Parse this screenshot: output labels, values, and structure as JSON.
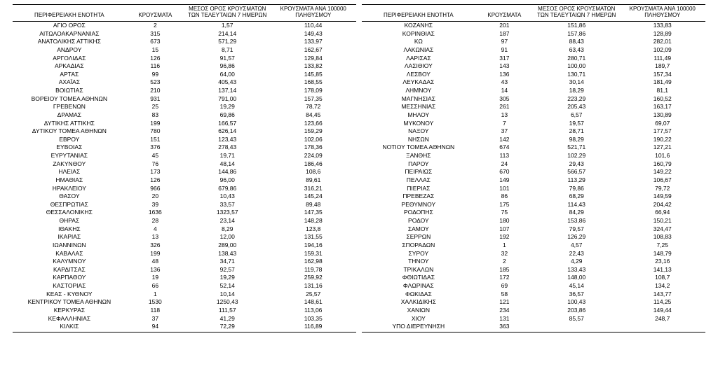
{
  "columns": [
    "ΠΕΡΙΦΕΡΕΙΑΚΗ ΕΝΟΤΗΤΑ",
    "ΚΡΟΥΣΜΑΤΑ",
    "ΜΕΣΟΣ ΟΡΟΣ ΚΡΟΥΣΜΑΤΩΝ\nΤΩΝ ΤΕΛΕΥΤΑΙΩΝ 7 ΗΜΕΡΩΝ",
    "ΚΡΟΥΣΜΑΤΑ ΑΝΑ 100000\nΠΛΗΘΥΣΜΟΥ"
  ],
  "style": {
    "background_color": "#ffffff",
    "text_color": "#000000",
    "rule_color": "#000000",
    "header_fontsize_pt": 8,
    "body_fontsize_pt": 8.5,
    "font_family": "Arial",
    "column_widths_pct": [
      33,
      17,
      25,
      25
    ],
    "type": "table"
  },
  "left": [
    [
      "ΑΓΙΟ ΟΡΟΣ",
      "2",
      "1,57",
      "110,44"
    ],
    [
      "ΑΙΤΩΛΟΑΚΑΡΝΑΝΙΑΣ",
      "315",
      "214,14",
      "149,43"
    ],
    [
      "ΑΝΑΤΟΛΙΚΗΣ ΑΤΤΙΚΗΣ",
      "673",
      "571,29",
      "133,97"
    ],
    [
      "ΑΝΔΡΟΥ",
      "15",
      "8,71",
      "162,67"
    ],
    [
      "ΑΡΓΟΛΙΔΑΣ",
      "126",
      "91,57",
      "129,84"
    ],
    [
      "ΑΡΚΑΔΙΑΣ",
      "116",
      "96,86",
      "133,82"
    ],
    [
      "ΑΡΤΑΣ",
      "99",
      "64,00",
      "145,85"
    ],
    [
      "ΑΧΑΪΑΣ",
      "523",
      "405,43",
      "168,55"
    ],
    [
      "ΒΟΙΩΤΙΑΣ",
      "210",
      "137,14",
      "178,09"
    ],
    [
      "ΒΟΡΕΙΟΥ ΤΟΜΕΑ ΑΘΗΝΩΝ",
      "931",
      "791,00",
      "157,35"
    ],
    [
      "ΓΡΕΒΕΝΩΝ",
      "25",
      "19,29",
      "78,72"
    ],
    [
      "ΔΡΑΜΑΣ",
      "83",
      "69,86",
      "84,45"
    ],
    [
      "ΔΥΤΙΚΗΣ ΑΤΤΙΚΗΣ",
      "199",
      "166,57",
      "123,66"
    ],
    [
      "ΔΥΤΙΚΟΥ ΤΟΜΕΑ ΑΘΗΝΩΝ",
      "780",
      "626,14",
      "159,29"
    ],
    [
      "ΕΒΡΟΥ",
      "151",
      "123,43",
      "102,06"
    ],
    [
      "ΕΥΒΟΙΑΣ",
      "376",
      "278,43",
      "178,36"
    ],
    [
      "ΕΥΡΥΤΑΝΙΑΣ",
      "45",
      "19,71",
      "224,09"
    ],
    [
      "ΖΑΚΥΝΘΟΥ",
      "76",
      "48,14",
      "186,46"
    ],
    [
      "ΗΛΕΙΑΣ",
      "173",
      "144,86",
      "108,6"
    ],
    [
      "ΗΜΑΘΙΑΣ",
      "126",
      "96,00",
      "89,61"
    ],
    [
      "ΗΡΑΚΛΕΙΟΥ",
      "966",
      "679,86",
      "316,21"
    ],
    [
      "ΘΑΣΟΥ",
      "20",
      "10,43",
      "145,24"
    ],
    [
      "ΘΕΣΠΡΩΤΙΑΣ",
      "39",
      "33,57",
      "89,48"
    ],
    [
      "ΘΕΣΣΑΛΟΝΙΚΗΣ",
      "1636",
      "1323,57",
      "147,35"
    ],
    [
      "ΘΗΡΑΣ",
      "28",
      "23,14",
      "148,28"
    ],
    [
      "ΙΘΑΚΗΣ",
      "4",
      "8,29",
      "123,8"
    ],
    [
      "ΙΚΑΡΙΑΣ",
      "13",
      "12,00",
      "131,55"
    ],
    [
      "ΙΩΑΝΝΙΝΩΝ",
      "326",
      "289,00",
      "194,16"
    ],
    [
      "ΚΑΒΑΛΑΣ",
      "199",
      "138,43",
      "159,31"
    ],
    [
      "ΚΑΛΥΜΝΟΥ",
      "48",
      "34,71",
      "162,98"
    ],
    [
      "ΚΑΡΔΙΤΣΑΣ",
      "136",
      "92,57",
      "119,78"
    ],
    [
      "ΚΑΡΠΑΘΟΥ",
      "19",
      "19,29",
      "259,92"
    ],
    [
      "ΚΑΣΤΟΡΙΑΣ",
      "66",
      "52,14",
      "131,16"
    ],
    [
      "ΚΕΑΣ - ΚΥΘΝΟΥ",
      "1",
      "10,14",
      "25,57"
    ],
    [
      "ΚΕΝΤΡΙΚΟΥ ΤΟΜΕΑ ΑΘΗΝΩΝ",
      "1530",
      "1250,43",
      "148,61"
    ],
    [
      "ΚΕΡΚΥΡΑΣ",
      "118",
      "111,57",
      "113,06"
    ],
    [
      "ΚΕΦΑΛΛΗΝΙΑΣ",
      "37",
      "41,29",
      "103,35"
    ],
    [
      "ΚΙΛΚΙΣ",
      "94",
      "72,29",
      "116,89"
    ]
  ],
  "right": [
    [
      "ΚΟΖΑΝΗΣ",
      "201",
      "151,86",
      "133,83"
    ],
    [
      "ΚΟΡΙΝΘΙΑΣ",
      "187",
      "157,86",
      "128,89"
    ],
    [
      "ΚΩ",
      "97",
      "88,43",
      "282,01"
    ],
    [
      "ΛΑΚΩΝΙΑΣ",
      "91",
      "63,43",
      "102,09"
    ],
    [
      "ΛΑΡΙΣΑΣ",
      "317",
      "280,71",
      "111,49"
    ],
    [
      "ΛΑΣΙΘΙΟΥ",
      "143",
      "100,00",
      "189,7"
    ],
    [
      "ΛΕΣΒΟΥ",
      "136",
      "130,71",
      "157,34"
    ],
    [
      "ΛΕΥΚΑΔΑΣ",
      "43",
      "30,14",
      "181,49"
    ],
    [
      "ΛΗΜΝΟΥ",
      "14",
      "18,29",
      "81,1"
    ],
    [
      "ΜΑΓΝΗΣΙΑΣ",
      "305",
      "223,29",
      "160,52"
    ],
    [
      "ΜΕΣΣΗΝΙΑΣ",
      "261",
      "205,43",
      "163,17"
    ],
    [
      "ΜΗΛΟΥ",
      "13",
      "6,57",
      "130,89"
    ],
    [
      "ΜΥΚΟΝΟΥ",
      "7",
      "19,57",
      "69,07"
    ],
    [
      "ΝΑΞΟΥ",
      "37",
      "28,71",
      "177,57"
    ],
    [
      "ΝΗΣΩΝ",
      "142",
      "98,29",
      "190,22"
    ],
    [
      "ΝΟΤΙΟΥ ΤΟΜΕΑ ΑΘΗΝΩΝ",
      "674",
      "521,71",
      "127,21"
    ],
    [
      "ΞΑΝΘΗΣ",
      "113",
      "102,29",
      "101,6"
    ],
    [
      "ΠΑΡΟΥ",
      "24",
      "29,43",
      "160,79"
    ],
    [
      "ΠΕΙΡΑΙΩΣ",
      "670",
      "566,57",
      "149,22"
    ],
    [
      "ΠΕΛΛΑΣ",
      "149",
      "113,29",
      "106,67"
    ],
    [
      "ΠΙΕΡΙΑΣ",
      "101",
      "79,86",
      "79,72"
    ],
    [
      "ΠΡΕΒΕΖΑΣ",
      "86",
      "68,29",
      "149,59"
    ],
    [
      "ΡΕΘΥΜΝΟΥ",
      "175",
      "114,43",
      "204,42"
    ],
    [
      "ΡΟΔΟΠΗΣ",
      "75",
      "84,29",
      "66,94"
    ],
    [
      "ΡΟΔΟΥ",
      "180",
      "153,86",
      "150,21"
    ],
    [
      "ΣΑΜΟΥ",
      "107",
      "79,57",
      "324,47"
    ],
    [
      "ΣΕΡΡΩΝ",
      "192",
      "126,29",
      "108,83"
    ],
    [
      "ΣΠΟΡΑΔΩΝ",
      "1",
      "4,57",
      "7,25"
    ],
    [
      "ΣΥΡΟΥ",
      "32",
      "22,43",
      "148,79"
    ],
    [
      "ΤΗΝΟΥ",
      "2",
      "4,29",
      "23,16"
    ],
    [
      "ΤΡΙΚΑΛΩΝ",
      "185",
      "133,43",
      "141,13"
    ],
    [
      "ΦΘΙΩΤΙΔΑΣ",
      "172",
      "148,00",
      "108,7"
    ],
    [
      "ΦΛΩΡΙΝΑΣ",
      "69",
      "45,14",
      "134,2"
    ],
    [
      "ΦΩΚΙΔΑΣ",
      "58",
      "36,57",
      "143,77"
    ],
    [
      "ΧΑΛΚΙΔΙΚΗΣ",
      "121",
      "100,43",
      "114,25"
    ],
    [
      "ΧΑΝΙΩΝ",
      "234",
      "203,86",
      "149,44"
    ],
    [
      "ΧΙΟΥ",
      "131",
      "85,57",
      "248,7"
    ],
    [
      "ΥΠΟ ΔΙΕΡΕΥΝΗΣΗ",
      "363",
      "",
      ""
    ]
  ]
}
